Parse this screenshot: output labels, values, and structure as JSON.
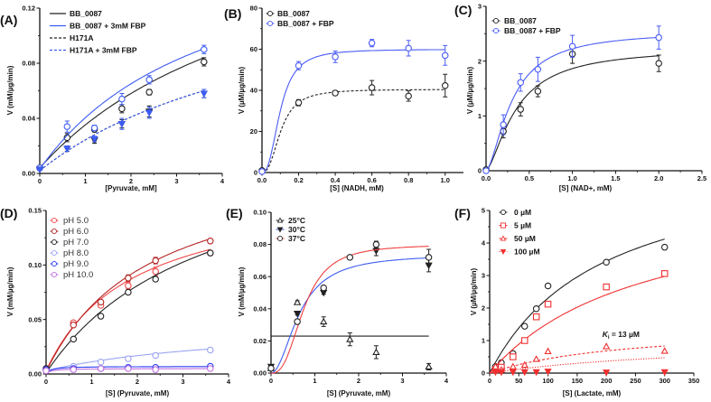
{
  "chart_data": [
    {
      "panel": "(A)",
      "type": "scatter",
      "xlabel": "[Pyruvate, mM]",
      "ylabel": "V (mM/µg/min)",
      "xlim": [
        0,
        4
      ],
      "ylim": [
        0,
        0.12
      ],
      "xticks": [
        0,
        1,
        2,
        3,
        4
      ],
      "xtick_labels": [
        "0",
        "1",
        "2",
        "3",
        "4"
      ],
      "yticks": [
        0,
        0.04,
        0.08,
        0.12
      ],
      "ytick_labels": [
        "0.00",
        "0.04",
        "0.08",
        "0.12"
      ],
      "legend_style": "line",
      "series": [
        {
          "name": "BB_0087",
          "color": "#222222",
          "marker": "circle",
          "filled": false,
          "line": "solid",
          "fit": {
            "model": "mm",
            "vmax": 0.2,
            "km": 5.4,
            "offset": 0.004
          },
          "x": [
            0,
            0.6,
            1.2,
            1.8,
            2.4,
            3.6
          ],
          "y": [
            0.004,
            0.026,
            0.032,
            0.047,
            0.059,
            0.081
          ],
          "err": [
            0.001,
            0.003,
            0.002,
            0.003,
            0.002,
            0.003
          ]
        },
        {
          "name": "BB_0087 + 3mM FBP",
          "color": "#3d5cf2",
          "marker": "circle",
          "filled": false,
          "line": "solid",
          "fit": {
            "model": "mm",
            "vmax": 0.18,
            "km": 3.8,
            "offset": 0.003
          },
          "x": [
            0,
            0.6,
            1.2,
            1.8,
            2.4,
            3.6
          ],
          "y": [
            0.004,
            0.034,
            0.033,
            0.054,
            0.068,
            0.09
          ],
          "err": [
            0.001,
            0.004,
            0.002,
            0.004,
            0.003,
            0.003
          ]
        },
        {
          "name": "H171A",
          "color": "#222222",
          "marker": "tri-down",
          "filled": true,
          "line": "dashed",
          "fit": {
            "model": "mm",
            "vmax": 0.15,
            "km": 5.7,
            "offset": 0.002
          },
          "x": [
            0,
            0.6,
            1.2,
            1.8,
            2.4,
            3.6
          ],
          "y": [
            0.003,
            0.018,
            0.024,
            0.036,
            0.045,
            0.058
          ],
          "err": [
            0.001,
            0.002,
            0.002,
            0.003,
            0.004,
            0.003
          ]
        },
        {
          "name": "H171A + 3mM FBP",
          "color": "#3d5cf2",
          "marker": "tri-down",
          "filled": true,
          "line": "dashed",
          "fit": {
            "model": "mm",
            "vmax": 0.15,
            "km": 5.7,
            "offset": 0.002
          },
          "x": [
            0,
            0.6,
            1.2,
            1.8,
            2.4,
            3.6
          ],
          "y": [
            0.003,
            0.018,
            0.025,
            0.036,
            0.044,
            0.058
          ],
          "err": [
            0.001,
            0.002,
            0.002,
            0.004,
            0.004,
            0.003
          ]
        }
      ]
    },
    {
      "panel": "(B)",
      "type": "scatter",
      "xlabel": "[S] (NADH, mM)",
      "ylabel": "V (µM/µg/min)",
      "xlim": [
        0,
        1.1
      ],
      "ylim": [
        0,
        80
      ],
      "xticks": [
        0,
        0.2,
        0.4,
        0.6,
        0.8,
        1.0
      ],
      "xtick_labels": [
        "0.0",
        "0.2",
        "0.4",
        "0.6",
        "0.8",
        "1.0"
      ],
      "yticks": [
        0,
        20,
        40,
        60,
        80
      ],
      "ytick_labels": [
        "0",
        "20",
        "40",
        "60",
        "80"
      ],
      "legend_style": "marker",
      "series": [
        {
          "name": "BB_0087",
          "color": "#222222",
          "marker": "circle",
          "filled": false,
          "line": "dashed",
          "fit": {
            "model": "hill",
            "vmax": 40.5,
            "k": 0.103,
            "n": 2.5
          },
          "x": [
            0,
            0.2,
            0.4,
            0.6,
            0.8,
            1.0
          ],
          "y": [
            1,
            34,
            38.7,
            41.3,
            37.2,
            42.3
          ],
          "err": [
            0.5,
            1.5,
            1,
            3.5,
            2.5,
            5.5
          ]
        },
        {
          "name": "BB_0087 + FBP",
          "color": "#4a5cf5",
          "marker": "circle",
          "filled": false,
          "line": "solid",
          "fit": {
            "model": "hill",
            "vmax": 60,
            "k": 0.1,
            "n": 2.5
          },
          "x": [
            0,
            0.2,
            0.4,
            0.6,
            0.8,
            1.0
          ],
          "y": [
            0.5,
            52,
            56.3,
            63,
            60.5,
            57
          ],
          "err": [
            0.5,
            2,
            2.8,
            1.8,
            3.8,
            4.8
          ]
        }
      ]
    },
    {
      "panel": "(C)",
      "type": "scatter",
      "xlabel": "[S] (NAD+, mM)",
      "ylabel": "V (µM/µg/min)",
      "xlim": [
        0,
        2.5
      ],
      "ylim": [
        0,
        3
      ],
      "xticks": [
        0,
        0.5,
        1.0,
        1.5,
        2.0,
        2.5
      ],
      "xtick_labels": [
        "0.0",
        "0.5",
        "1.0",
        "1.5",
        "2.0",
        "2.5"
      ],
      "yticks": [
        0,
        1,
        2,
        3
      ],
      "ytick_labels": [
        "0",
        "1",
        "2",
        "3"
      ],
      "legend_style": "marker",
      "series": [
        {
          "name": "BB_0087",
          "color": "#222222",
          "marker": "circle",
          "filled": false,
          "line": "solid",
          "fit": {
            "model": "hill",
            "vmax": 2.25,
            "k": 0.35,
            "n": 1.5
          },
          "x": [
            0,
            0.2,
            0.4,
            0.6,
            1.0,
            2.0
          ],
          "y": [
            0.02,
            0.72,
            1.12,
            1.45,
            2.13,
            1.96
          ],
          "err": [
            0.02,
            0.12,
            0.12,
            0.1,
            0.17,
            0.15
          ]
        },
        {
          "name": "BB_0087 + FBP",
          "color": "#4a5cf5",
          "marker": "circle",
          "filled": false,
          "line": "solid",
          "fit": {
            "model": "hill",
            "vmax": 2.55,
            "k": 0.3,
            "n": 1.6
          },
          "x": [
            0,
            0.2,
            0.4,
            0.6,
            1.0,
            2.0
          ],
          "y": [
            0,
            0.84,
            1.61,
            1.85,
            2.27,
            2.43
          ],
          "err": [
            0.02,
            0.18,
            0.16,
            0.22,
            0.2,
            0.21
          ]
        }
      ]
    },
    {
      "panel": "(D)",
      "type": "scatter",
      "xlabel": "[S] (Pyruvate, mM)",
      "ylabel": "V (mM/µg/min)",
      "xlim": [
        0,
        4
      ],
      "ylim": [
        0,
        0.15
      ],
      "xticks": [
        0,
        1,
        2,
        3,
        4
      ],
      "xtick_labels": [
        "0",
        "1",
        "2",
        "3",
        "4"
      ],
      "yticks": [
        0,
        0.05,
        0.1,
        0.15
      ],
      "ytick_labels": [
        "0.00",
        "0.05",
        "0.10",
        "0.15"
      ],
      "legend_style": "marker",
      "series": [
        {
          "name": "pH 5.0",
          "color": "#f04848",
          "marker": "circle",
          "filled": false,
          "line": "solid",
          "fit": {
            "model": "mm",
            "vmax": 0.17,
            "km": 1.9,
            "offset": 0.003
          },
          "x": [
            0,
            0.6,
            1.2,
            1.8,
            2.4,
            3.6
          ],
          "y": [
            0.005,
            0.047,
            0.063,
            0.081,
            0.094,
            0.111
          ],
          "err": [
            0.001,
            0.002,
            0.002,
            0.003,
            0.004,
            0.002
          ]
        },
        {
          "name": "pH 6.0",
          "color": "#b52424",
          "marker": "circle",
          "filled": false,
          "line": "solid",
          "fit": {
            "model": "mm",
            "vmax": 0.2,
            "km": 2.3,
            "offset": 0.002
          },
          "x": [
            0,
            0.6,
            1.2,
            1.8,
            2.4,
            3.6
          ],
          "y": [
            0.005,
            0.045,
            0.066,
            0.088,
            0.104,
            0.122
          ],
          "err": [
            0.001,
            0.002,
            0.002,
            0.003,
            0.003,
            0.002
          ]
        },
        {
          "name": "pH 7.0",
          "color": "#222222",
          "marker": "circle",
          "filled": false,
          "line": "solid",
          "fit": {
            "model": "mm",
            "vmax": 0.22,
            "km": 3.5,
            "offset": 0.001
          },
          "x": [
            0,
            0.6,
            1.2,
            1.8,
            2.4,
            3.6
          ],
          "y": [
            0.005,
            0.032,
            0.053,
            0.075,
            0.087,
            0.111
          ],
          "err": [
            0.001,
            0.001,
            0.001,
            0.002,
            0.002,
            0.002
          ]
        },
        {
          "name": "pH 8.0",
          "color": "#9aa4f2",
          "marker": "circle",
          "filled": false,
          "line": "solid",
          "fit": {
            "model": "mm",
            "vmax": 0.045,
            "km": 4.5,
            "offset": 0.003
          },
          "x": [
            0,
            0.6,
            1.2,
            1.8,
            2.4,
            3.6
          ],
          "y": [
            0.003,
            0.007,
            0.011,
            0.014,
            0.017,
            0.022
          ],
          "err": [
            0.0005,
            0.0005,
            0.0005,
            0.0005,
            0.0005,
            0.0005
          ]
        },
        {
          "name": "pH 9.0",
          "color": "#2a3ff0",
          "marker": "circle",
          "filled": false,
          "line": "solid",
          "fit": {
            "model": "mm",
            "vmax": 0.007,
            "km": 0.1,
            "offset": 0.0
          },
          "x": [
            0,
            0.6,
            1.2,
            1.8,
            2.4,
            3.6
          ],
          "y": [
            0.004,
            0.005,
            0.005,
            0.006,
            0.006,
            0.007
          ],
          "err": [
            0.0005,
            0.0005,
            0.0005,
            0.0005,
            0.0005,
            0.0005
          ]
        },
        {
          "name": "pH 10.0",
          "color": "#c070e0",
          "marker": "circle",
          "filled": false,
          "line": "solid",
          "fit": {
            "model": "mm",
            "vmax": 0.005,
            "km": 0.1,
            "offset": 0.0
          },
          "x": [
            0,
            0.6,
            1.2,
            1.8,
            2.4,
            3.6
          ],
          "y": [
            0.003,
            0.004,
            0.005,
            0.005,
            0.004,
            0.005
          ],
          "err": [
            0.0005,
            0.0005,
            0.0005,
            0.0005,
            0.0005,
            0.0005
          ]
        }
      ]
    },
    {
      "panel": "(E)",
      "type": "scatter",
      "xlabel": "[S] (Pyruvate, mM)",
      "ylabel": "V (mM/µg/min)",
      "xlim": [
        0,
        4
      ],
      "ylim": [
        0,
        0.1
      ],
      "xticks": [
        0,
        1,
        2,
        3,
        4
      ],
      "xtick_labels": [
        "0",
        "1",
        "2",
        "3",
        "4"
      ],
      "yticks": [
        0,
        0.02,
        0.04,
        0.06,
        0.08,
        0.1
      ],
      "ytick_labels": [
        "0.00",
        "0.02",
        "0.04",
        "0.06",
        "0.08",
        "0.10"
      ],
      "legend_style": "marker",
      "series": [
        {
          "name": "25°C",
          "color": "#222222",
          "marker": "tri-up",
          "filled": false,
          "line": "solid",
          "fit": {
            "model": "const",
            "value": 0.023,
            "xmax": 3.6
          },
          "x": [
            0,
            0.6,
            1.2,
            1.8,
            2.4,
            3.6
          ],
          "y": [
            0.003,
            0.044,
            0.032,
            0.021,
            0.013,
            0.004
          ],
          "err": [
            0.001,
            0.001,
            0.003,
            0.004,
            0.004,
            0.002
          ]
        },
        {
          "name": "30°C",
          "color": "#222222",
          "fitcolor": "#3d5cf2",
          "marker": "tri-down",
          "filled": true,
          "line": "solid",
          "fit": {
            "model": "hill",
            "vmax": 0.074,
            "k": 0.65,
            "n": 2
          },
          "x": [
            0,
            0.6,
            1.2,
            2.4,
            3.6
          ],
          "y": [
            0.004,
            0.037,
            0.05,
            0.076,
            0.067
          ],
          "err": [
            0.001,
            0.001,
            0.001,
            0.003,
            0.004
          ]
        },
        {
          "name": "37°C",
          "color": "#222222",
          "fitcolor": "#f04040",
          "marker": "circle",
          "filled": false,
          "line": "solid",
          "fit": {
            "model": "hill",
            "vmax": 0.08,
            "k": 0.75,
            "n": 2.7
          },
          "x": [
            0,
            0.6,
            1.2,
            1.8,
            2.4,
            3.6
          ],
          "y": [
            0.003,
            0.032,
            0.053,
            0.072,
            0.08,
            0.072
          ],
          "err": [
            0.001,
            0.001,
            0.001,
            0.001,
            0.002,
            0.005
          ]
        }
      ]
    },
    {
      "panel": "(F)",
      "type": "scatter",
      "xlabel": "[S] (Lactate, mM)",
      "ylabel": "V (µM/µg/min)",
      "xlim": [
        0,
        350
      ],
      "ylim": [
        0,
        5
      ],
      "xticks": [
        0,
        50,
        100,
        150,
        200,
        250,
        300,
        350
      ],
      "xtick_labels": [
        "0",
        "50",
        "100",
        "150",
        "200",
        "250",
        "300",
        "350"
      ],
      "yticks": [
        0,
        1,
        2,
        3,
        4,
        5
      ],
      "ytick_labels": [
        "0",
        "1",
        "2",
        "3",
        "4",
        "5"
      ],
      "legend_style": "marker",
      "annotation": {
        "symbol": "K",
        "subscript": "i",
        "text": " = 13 µM"
      },
      "series": [
        {
          "name": "0 µM",
          "color": "#222222",
          "marker": "circle",
          "filled": false,
          "line": "solid",
          "fit": {
            "model": "mm",
            "vmax": 6.8,
            "km": 195,
            "offset": 0
          },
          "x": [
            10,
            20,
            40,
            60,
            80,
            100,
            200,
            300
          ],
          "y": [
            0.2,
            0.32,
            0.6,
            1.44,
            1.98,
            2.68,
            3.41,
            3.87
          ],
          "err": []
        },
        {
          "name": "5 µM",
          "color": "#f03030",
          "marker": "square",
          "filled": false,
          "line": "solid",
          "fit": {
            "model": "mm",
            "vmax": 5.6,
            "km": 265,
            "offset": 0
          },
          "x": [
            10,
            20,
            40,
            60,
            80,
            100,
            200,
            300
          ],
          "y": [
            0.1,
            0.18,
            0.5,
            1.0,
            1.73,
            2.12,
            2.65,
            3.06
          ],
          "err": []
        },
        {
          "name": "50 µM",
          "color": "#f03030",
          "marker": "tri-up",
          "filled": false,
          "line": "dashed",
          "fit": {
            "model": "mm",
            "vmax": 1.5,
            "km": 240,
            "offset": 0
          },
          "x": [
            10,
            20,
            40,
            60,
            80,
            100,
            200,
            300
          ],
          "y": [
            0.2,
            0.1,
            0.2,
            0.25,
            0.43,
            0.67,
            0.82,
            0.68
          ],
          "err": []
        },
        {
          "name": "100 µM",
          "color": "#f03030",
          "marker": "tri-down",
          "filled": true,
          "line": "dotted",
          "fit": {
            "model": "mm",
            "vmax": 1.1,
            "km": 400,
            "offset": 0
          },
          "x": [
            10,
            20,
            40,
            60,
            80,
            100,
            200,
            300
          ],
          "y": [
            0.03,
            0.03,
            0.03,
            0.03,
            0.03,
            0.05,
            0.02,
            0.03
          ],
          "err": []
        }
      ]
    }
  ]
}
